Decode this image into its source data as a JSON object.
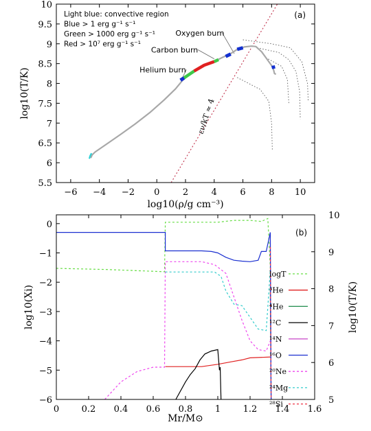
{
  "chart_data": [
    {
      "type": "line",
      "panel_label": "(a)",
      "xlabel": "log10(ρ/g cm⁻³)",
      "ylabel": "log10(T/K)",
      "xlim": [
        -7,
        11
      ],
      "ylim": [
        5.5,
        10
      ],
      "xticks": [
        -6,
        -4,
        -2,
        0,
        2,
        4,
        6,
        8,
        10
      ],
      "xtick_labels": [
        "−6",
        "−4",
        "−2",
        "0",
        "2",
        "4",
        "6",
        "8",
        "10"
      ],
      "yticks": [
        5.5,
        6,
        6.5,
        7,
        7.5,
        8,
        8.5,
        9,
        9.5,
        10
      ],
      "ytick_labels": [
        "5.5",
        "6",
        "6.5",
        "7",
        "7.5",
        "8",
        "8.5",
        "9",
        "9.5",
        "10"
      ],
      "grid": false,
      "legend_text": [
        "Light blue: convective region",
        "Blue > 1 erg g⁻¹ s⁻¹",
        "Green > 1000 erg g⁻¹ s⁻¹",
        "Red > 10⁷ erg g⁻¹ s⁻¹"
      ],
      "annotations": [
        {
          "text": "Oxygen burn",
          "x": 1.3,
          "y": 9.2,
          "points_to": [
            5.4,
            8.75
          ]
        },
        {
          "text": "Carbon burn",
          "x": -0.4,
          "y": 8.78,
          "points_to": [
            4.0,
            8.62
          ]
        },
        {
          "text": "Helium burn",
          "x": -1.2,
          "y": 8.28,
          "points_to": [
            1.7,
            8.08
          ]
        },
        {
          "text": "εν/kT ≈ 4",
          "x": 3.6,
          "y": 7.15,
          "rotated": true
        }
      ],
      "series": [
        {
          "role": "profile",
          "color": "#a8a8a8",
          "x": [
            -4.6,
            -4.5,
            -4.3,
            -3.5,
            -2.5,
            -1.5,
            -0.5,
            0.5,
            1.3,
            1.8,
            2.6,
            3.4,
            4.1,
            4.6,
            5.1,
            5.6,
            6.1,
            6.6,
            6.9,
            7.3,
            7.7,
            8.1,
            8.2,
            8.3
          ],
          "y": [
            6.12,
            6.2,
            6.27,
            6.47,
            6.72,
            6.98,
            7.26,
            7.58,
            7.86,
            8.08,
            8.32,
            8.47,
            8.57,
            8.66,
            8.74,
            8.86,
            8.92,
            8.94,
            8.93,
            8.8,
            8.6,
            8.4,
            8.25,
            8.23
          ]
        },
        {
          "role": "convective",
          "color": "#2fd1d6",
          "x": [
            -4.7,
            -4.65,
            -4.55
          ],
          "y": [
            6.1,
            6.17,
            6.24
          ]
        },
        {
          "role": "green",
          "color": "#3ec84a",
          "x": [
            1.9,
            2.6
          ],
          "y": [
            8.14,
            8.31
          ]
        },
        {
          "role": "red",
          "color": "#e02020",
          "x": [
            2.6,
            3.3,
            4.0
          ],
          "y": [
            8.31,
            8.46,
            8.55
          ]
        },
        {
          "role": "green",
          "color": "#3ec84a",
          "x": [
            4.0,
            4.3
          ],
          "y": [
            8.55,
            8.6
          ]
        },
        {
          "role": "blue",
          "color": "#1230d0",
          "x": [
            1.65,
            1.9
          ],
          "y": [
            8.08,
            8.14
          ]
        },
        {
          "role": "blue",
          "color": "#1230d0",
          "x": [
            4.8,
            5.15
          ],
          "y": [
            8.68,
            8.74
          ]
        },
        {
          "role": "blue",
          "color": "#1230d0",
          "x": [
            5.6,
            6.0
          ],
          "y": [
            8.86,
            8.9
          ]
        },
        {
          "role": "blue",
          "color": "#1230d0",
          "x": [
            8.1,
            8.15
          ],
          "y": [
            8.45,
            8.37
          ]
        }
      ],
      "dotted_tracks": [
        {
          "x": [
            6.0,
            8.0,
            9.3,
            10.1,
            10.5,
            10.55
          ],
          "y": [
            9.1,
            9.0,
            8.9,
            8.55,
            8.0,
            7.55
          ]
        },
        {
          "x": [
            7.0,
            8.5,
            9.2,
            9.7,
            9.95,
            10.0
          ],
          "y": [
            8.9,
            8.78,
            8.6,
            8.3,
            7.8,
            7.1
          ]
        },
        {
          "x": [
            7.6,
            8.7,
            9.1,
            9.2
          ],
          "y": [
            8.65,
            8.43,
            8.1,
            7.5
          ]
        },
        {
          "x": [
            5.6,
            7.2,
            7.8,
            8.0,
            8.05
          ],
          "y": [
            8.15,
            7.85,
            7.55,
            7.0,
            6.3
          ]
        }
      ],
      "neutrino_line": {
        "color": "#c0304a",
        "x": [
          1.0,
          8.4
        ],
        "y": [
          5.5,
          10.0
        ]
      }
    },
    {
      "type": "line",
      "panel_label": "(b)",
      "xlabel": "Mr/M⊙",
      "ylabel": "log10(Xi)",
      "y2label": "log10(T/K)",
      "xlim": [
        0,
        1.6
      ],
      "ylim": [
        -6,
        0.3
      ],
      "y2lim": [
        5,
        10
      ],
      "xticks": [
        0,
        0.2,
        0.4,
        0.6,
        0.8,
        1,
        1.2,
        1.4,
        1.6
      ],
      "xtick_labels": [
        "0",
        "0.2",
        "0.4",
        "0.6",
        "0.8",
        "1",
        "1.2",
        "1.4",
        "1.6"
      ],
      "yticks": [
        0,
        -1,
        -2,
        -3,
        -4,
        -5,
        -6
      ],
      "ytick_labels": [
        "0",
        "−1",
        "−2",
        "−3",
        "−4",
        "−5",
        "−6"
      ],
      "y2ticks": [
        5,
        6,
        7,
        8,
        9,
        10
      ],
      "y2tick_labels": [
        "5",
        "6",
        "7",
        "8",
        "9",
        "10"
      ],
      "grid": false,
      "legend_position": "right",
      "series": [
        {
          "name": "logT",
          "color": "#66dd44",
          "dash": "3,3",
          "axis": "y2",
          "x": [
            0,
            0.3,
            0.67,
            0.675,
            0.8,
            1.0,
            1.1,
            1.2,
            1.27,
            1.31,
            1.325,
            1.33
          ],
          "y": [
            8.55,
            8.52,
            8.46,
            9.8,
            9.8,
            9.8,
            9.85,
            9.85,
            9.82,
            9.9,
            8.6,
            5.4
          ]
        },
        {
          "name": "³He",
          "color": "#e02020",
          "dash": "",
          "x": [
            0.675,
            0.9,
            1.0,
            1.08,
            1.15,
            1.2,
            1.33
          ],
          "y": [
            -4.88,
            -4.88,
            -4.8,
            -4.72,
            -4.65,
            -4.58,
            -4.55
          ]
        },
        {
          "name": "⁴He",
          "color": "#1e8a4a",
          "dash": "",
          "x": [
            1.325,
            1.33
          ],
          "y": [
            -2.2,
            -6
          ]
        },
        {
          "name": "¹²C",
          "color": "#000000",
          "dash": "",
          "x": [
            0.74,
            0.8,
            0.83,
            0.86,
            0.89,
            0.92,
            0.96,
            1.0,
            1.01,
            1.015,
            1.02
          ],
          "y": [
            -6,
            -5.4,
            -5.15,
            -4.95,
            -4.65,
            -4.45,
            -4.35,
            -4.3,
            -5.0,
            -4.9,
            -6
          ]
        },
        {
          "name": "¹⁴N",
          "color": "#cc55cc",
          "dash": "",
          "x": [
            1.325,
            1.33
          ],
          "y": [
            -0.3,
            -6
          ]
        },
        {
          "name": "¹⁶O",
          "color": "#1a2fd0",
          "dash": "",
          "x": [
            0,
            0.675,
            0.675,
            0.9,
            0.96,
            1.0,
            1.05,
            1.1,
            1.15,
            1.2,
            1.25,
            1.27,
            1.3,
            1.325,
            1.33
          ],
          "y": [
            -0.3,
            -0.3,
            -0.93,
            -0.93,
            -0.95,
            -1.0,
            -1.15,
            -1.25,
            -1.28,
            -1.3,
            -1.25,
            -0.95,
            -0.95,
            -0.3,
            -6
          ]
        },
        {
          "name": "²⁰Ne",
          "color": "#ee44ee",
          "dash": "3,3",
          "x": [
            0.3,
            0.4,
            0.5,
            0.6,
            0.67,
            0.675,
            0.9,
            0.98,
            1.05,
            1.1,
            1.15,
            1.2,
            1.25,
            1.3,
            1.325
          ],
          "y": [
            -6,
            -5.4,
            -5.05,
            -4.9,
            -4.9,
            -1.3,
            -1.3,
            -1.4,
            -1.7,
            -2.5,
            -3.3,
            -4.0,
            -4.3,
            -4.35,
            -4.0
          ]
        },
        {
          "name": "²⁴Mg",
          "color": "#33cccc",
          "dash": "3,3",
          "x": [
            0.675,
            0.9,
            0.98,
            1.02,
            1.05,
            1.1,
            1.15,
            1.2,
            1.25,
            1.3,
            1.325
          ],
          "y": [
            -1.65,
            -1.65,
            -1.65,
            -1.8,
            -2.3,
            -2.75,
            -2.8,
            -3.2,
            -3.6,
            -3.65,
            -1.6
          ]
        },
        {
          "name": "²⁸Si",
          "color": "#ee3344",
          "dash": "3,3",
          "x": [
            1.325,
            1.33
          ],
          "y": [
            -0.8,
            -6
          ]
        }
      ]
    }
  ]
}
